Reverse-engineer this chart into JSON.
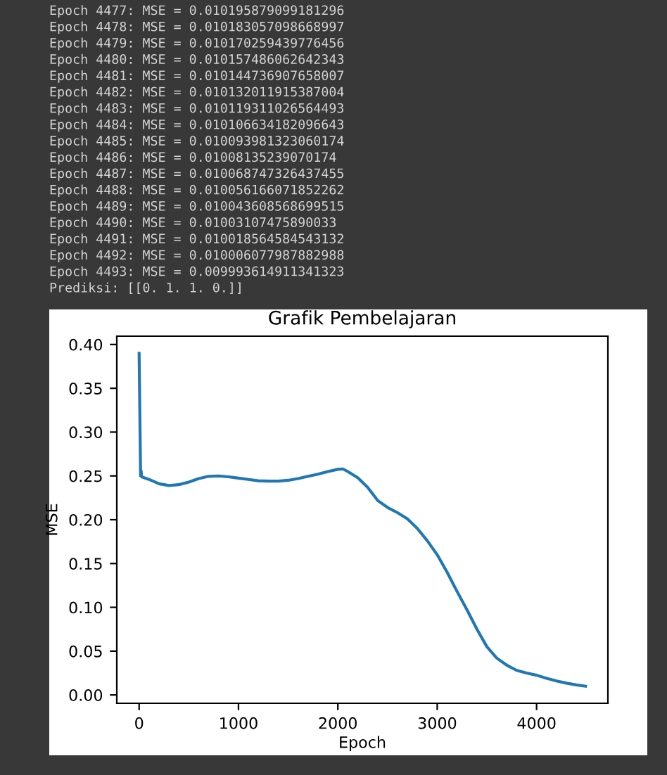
{
  "chart_data": {
    "type": "line",
    "title": "Grafik Pembelajaran",
    "xlabel": "Epoch",
    "ylabel": "MSE",
    "annotations": [
      "Epoch 4477: MSE = 0.010195879099181296",
      "Epoch 4478: MSE = 0.010183057098668997",
      "Epoch 4479: MSE = 0.010170259439776456",
      "Epoch 4480: MSE = 0.010157486062642343",
      "Epoch 4481: MSE = 0.010144736907658007",
      "Epoch 4482: MSE = 0.010132011915387004",
      "Epoch 4483: MSE = 0.010119311026564493",
      "Epoch 4484: MSE = 0.010106634182096643",
      "Epoch 4485: MSE = 0.010093981323060174",
      "Epoch 4486: MSE = 0.01008135239070174",
      "Epoch 4487: MSE = 0.010068747326437455",
      "Epoch 4488: MSE = 0.010056166071852262",
      "Epoch 4489: MSE = 0.010043608568699515",
      "Epoch 4490: MSE = 0.01003107475890033",
      "Epoch 4491: MSE = 0.010018564584543132",
      "Epoch 4492: MSE = 0.010006077987882988",
      "Epoch 4493: MSE = 0.009993614911341323",
      "Prediksi: [[0. 1. 1. 0.]]"
    ],
    "series": [
      {
        "color": "#1f77b4",
        "x": [
          0,
          15,
          20,
          25,
          100,
          200,
          300,
          400,
          500,
          600,
          700,
          800,
          900,
          1000,
          1100,
          1200,
          1300,
          1400,
          1500,
          1600,
          1700,
          1800,
          1900,
          2000,
          2050,
          2100,
          2200,
          2300,
          2400,
          2500,
          2600,
          2700,
          2800,
          2900,
          3000,
          3100,
          3200,
          3300,
          3400,
          3500,
          3600,
          3700,
          3800,
          3900,
          4000,
          4100,
          4200,
          4300,
          4400,
          4493
        ],
        "values": [
          0.39,
          0.25,
          0.256,
          0.249,
          0.246,
          0.241,
          0.239,
          0.24,
          0.243,
          0.247,
          0.2495,
          0.25,
          0.249,
          0.2475,
          0.246,
          0.2445,
          0.244,
          0.244,
          0.245,
          0.247,
          0.2495,
          0.252,
          0.255,
          0.2575,
          0.258,
          0.255,
          0.248,
          0.237,
          0.222,
          0.214,
          0.208,
          0.201,
          0.19,
          0.176,
          0.16,
          0.14,
          0.118,
          0.097,
          0.075,
          0.055,
          0.042,
          0.034,
          0.028,
          0.025,
          0.0225,
          0.019,
          0.016,
          0.0135,
          0.0115,
          0.00999
        ]
      }
    ],
    "xlim": [
      -224.65,
      4717.65
    ],
    "xticks": [
      0,
      1000,
      2000,
      3000,
      4000
    ],
    "ylim": [
      -0.0095,
      0.4095
    ],
    "yticks": [
      {
        "value": 0,
        "label": "0.00"
      },
      {
        "value": 0.05,
        "label": "0.05"
      },
      {
        "value": 0.1,
        "label": "0.10"
      },
      {
        "value": 0.15,
        "label": "0.15"
      },
      {
        "value": 0.2,
        "label": "0.20"
      },
      {
        "value": 0.25,
        "label": "0.25"
      },
      {
        "value": 0.3,
        "label": "0.30"
      },
      {
        "value": 0.35,
        "label": "0.35"
      },
      {
        "value": 0.4,
        "label": "0.40"
      }
    ],
    "grid": false,
    "legend": false
  }
}
